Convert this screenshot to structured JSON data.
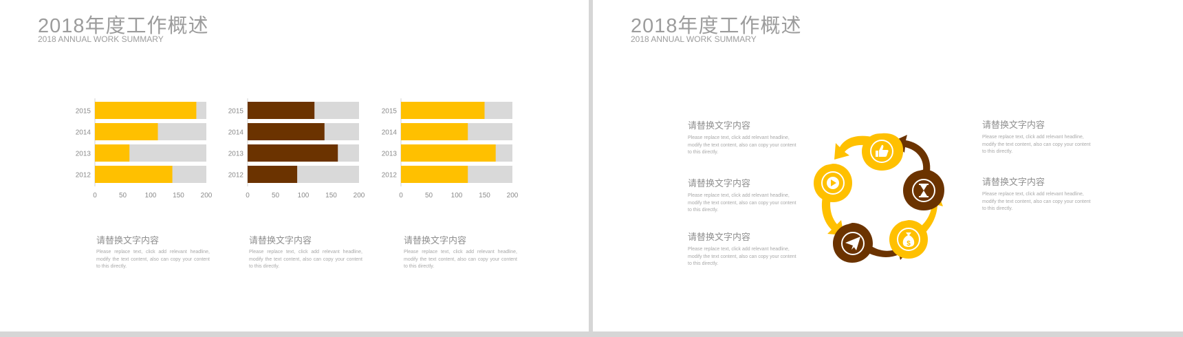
{
  "colors": {
    "yellow": "#FFC000",
    "brown": "#6B3300",
    "track": "#D9D9D9",
    "text": "#9c9c9c"
  },
  "left_slide": {
    "title": "2018年度工作概述",
    "subtitle": "2018 ANNUAL WORK SUMMARY",
    "captions": [
      {
        "heading": "请替换文字内容",
        "body": "Please replace text, click add relevant headline, modify the text content, also can copy your content to this directly."
      },
      {
        "heading": "请替换文字内容",
        "body": "Please replace text, click add relevant headline, modify the text content, also can copy your content to this directly."
      },
      {
        "heading": "请替换文字内容",
        "body": "Please replace text, click add relevant headline, modify the text content, also can copy your content to this directly."
      }
    ]
  },
  "right_slide": {
    "title": "2018年度工作概述",
    "subtitle": "2018 ANNUAL WORK SUMMARY",
    "left_items": [
      {
        "heading": "请替换文字内容",
        "body": "Please replace text, click add relevant headline, modify the text content, also can copy your content to this directly."
      },
      {
        "heading": "请替换文字内容",
        "body": "Please replace text, click add relevant headline, modify the text content, also can copy your content to this directly."
      },
      {
        "heading": "请替换文字内容",
        "body": "Please replace text, click add relevant headline, modify the text content, also can copy your content to this directly."
      }
    ],
    "right_items": [
      {
        "heading": "请替换文字内容",
        "body": "Please replace text, click add relevant headline, modify the text content, also can copy your content to this directly."
      },
      {
        "heading": "请替换文字内容",
        "body": "Please replace text, click add relevant headline, modify the text content, also can copy your content to this directly."
      }
    ],
    "cycle_nodes": [
      {
        "icon": "thumbs-up-icon",
        "color": "#FFC000"
      },
      {
        "icon": "hourglass-icon",
        "color": "#6B3300"
      },
      {
        "icon": "money-bag-icon",
        "color": "#FFC000"
      },
      {
        "icon": "paper-plane-icon",
        "color": "#6B3300"
      },
      {
        "icon": "play-icon",
        "color": "#FFC000"
      }
    ]
  },
  "chart_data": [
    {
      "type": "bar",
      "orientation": "horizontal",
      "categories": [
        "2015",
        "2014",
        "2013",
        "2012"
      ],
      "values": [
        182,
        113,
        62,
        139
      ],
      "max": 200,
      "xlim": [
        0,
        200
      ],
      "xticks": [
        "0",
        "50",
        "100",
        "150",
        "200"
      ],
      "color": "#FFC000"
    },
    {
      "type": "bar",
      "orientation": "horizontal",
      "categories": [
        "2015",
        "2014",
        "2013",
        "2012"
      ],
      "values": [
        120,
        138,
        162,
        89
      ],
      "max": 200,
      "xlim": [
        0,
        200
      ],
      "xticks": [
        "0",
        "50",
        "100",
        "150",
        "200"
      ],
      "color": "#6B3300"
    },
    {
      "type": "bar",
      "orientation": "horizontal",
      "categories": [
        "2015",
        "2014",
        "2013",
        "2012"
      ],
      "values": [
        150,
        120,
        170,
        120
      ],
      "max": 200,
      "xlim": [
        0,
        200
      ],
      "xticks": [
        "0",
        "50",
        "100",
        "150",
        "200"
      ],
      "color": "#FFC000"
    }
  ]
}
